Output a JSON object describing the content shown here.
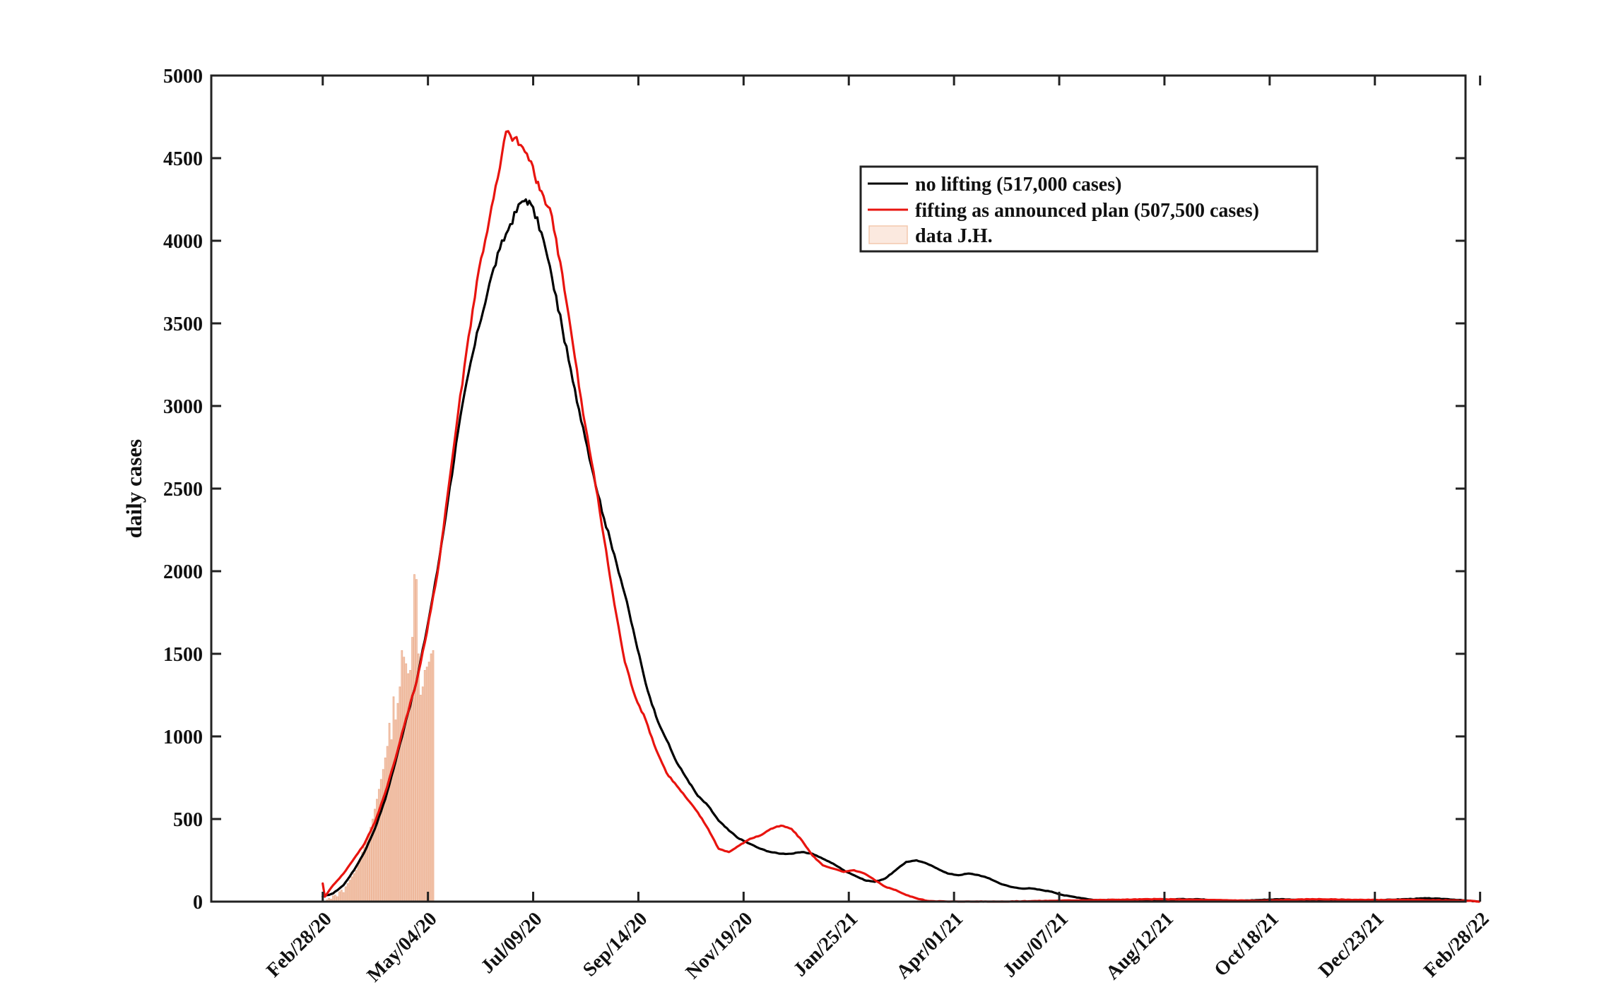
{
  "chart_data": {
    "type": "line",
    "title": "",
    "xlabel": "",
    "ylabel": "daily cases",
    "ylim": [
      0,
      5000
    ],
    "xlim_days": [
      -107,
      1097
    ],
    "yticks": [
      0,
      500,
      1000,
      1500,
      2000,
      2500,
      3000,
      3500,
      4000,
      4500,
      5000
    ],
    "xticks": [
      {
        "label": "Feb/28/20",
        "day": 0
      },
      {
        "label": "May/04/20",
        "day": 101
      },
      {
        "label": "Jul/09/20",
        "day": 202
      },
      {
        "label": "Sep/14/20",
        "day": 303
      },
      {
        "label": "Nov/19/20",
        "day": 404
      },
      {
        "label": "Jan/25/21",
        "day": 505
      },
      {
        "label": "Apr/01/21",
        "day": 606
      },
      {
        "label": "Jun/07/21",
        "day": 707
      },
      {
        "label": "Aug/12/21",
        "day": 808
      },
      {
        "label": "Oct/18/21",
        "day": 909
      },
      {
        "label": "Dec/23/21",
        "day": 1010
      },
      {
        "label": "Feb/28/22",
        "day": 1111
      }
    ],
    "legend": {
      "position": "top-right",
      "entries": [
        {
          "label": "no lifting (517,000 cases)",
          "series": "no_lifting"
        },
        {
          "label": "fifting as announced plan (507,500 cases)",
          "series": "lifting"
        },
        {
          "label": "data J.H.",
          "series": "data"
        }
      ]
    },
    "series": [
      {
        "name": "no lifting (517,000 cases)",
        "key": "no_lifting",
        "kind": "line",
        "color": "#000000",
        "points": [
          [
            0,
            30
          ],
          [
            10,
            50
          ],
          [
            20,
            100
          ],
          [
            30,
            190
          ],
          [
            40,
            300
          ],
          [
            50,
            440
          ],
          [
            60,
            620
          ],
          [
            70,
            850
          ],
          [
            80,
            1100
          ],
          [
            90,
            1330
          ],
          [
            100,
            1650
          ],
          [
            110,
            2000
          ],
          [
            120,
            2420
          ],
          [
            130,
            2850
          ],
          [
            140,
            3200
          ],
          [
            150,
            3480
          ],
          [
            160,
            3740
          ],
          [
            170,
            3950
          ],
          [
            180,
            4100
          ],
          [
            190,
            4230
          ],
          [
            195,
            4250
          ],
          [
            200,
            4220
          ],
          [
            210,
            4050
          ],
          [
            220,
            3780
          ],
          [
            230,
            3470
          ],
          [
            240,
            3150
          ],
          [
            250,
            2870
          ],
          [
            260,
            2580
          ],
          [
            270,
            2320
          ],
          [
            280,
            2100
          ],
          [
            290,
            1860
          ],
          [
            300,
            1590
          ],
          [
            310,
            1320
          ],
          [
            320,
            1120
          ],
          [
            330,
            980
          ],
          [
            340,
            840
          ],
          [
            350,
            740
          ],
          [
            360,
            640
          ],
          [
            370,
            580
          ],
          [
            380,
            490
          ],
          [
            390,
            430
          ],
          [
            400,
            380
          ],
          [
            410,
            350
          ],
          [
            420,
            320
          ],
          [
            430,
            300
          ],
          [
            440,
            290
          ],
          [
            450,
            290
          ],
          [
            460,
            300
          ],
          [
            470,
            290
          ],
          [
            480,
            260
          ],
          [
            490,
            230
          ],
          [
            500,
            190
          ],
          [
            510,
            160
          ],
          [
            520,
            130
          ],
          [
            530,
            120
          ],
          [
            540,
            140
          ],
          [
            550,
            190
          ],
          [
            560,
            240
          ],
          [
            570,
            250
          ],
          [
            580,
            230
          ],
          [
            590,
            200
          ],
          [
            600,
            170
          ],
          [
            610,
            160
          ],
          [
            620,
            170
          ],
          [
            630,
            160
          ],
          [
            640,
            140
          ],
          [
            650,
            110
          ],
          [
            660,
            90
          ],
          [
            670,
            80
          ],
          [
            680,
            80
          ],
          [
            690,
            70
          ],
          [
            700,
            60
          ],
          [
            710,
            40
          ],
          [
            720,
            30
          ],
          [
            730,
            20
          ],
          [
            740,
            10
          ],
          [
            760,
            10
          ],
          [
            780,
            5
          ],
          [
            800,
            5
          ],
          [
            820,
            15
          ],
          [
            840,
            15
          ],
          [
            860,
            5
          ],
          [
            880,
            5
          ],
          [
            900,
            10
          ],
          [
            920,
            15
          ],
          [
            940,
            10
          ],
          [
            960,
            10
          ],
          [
            980,
            5
          ],
          [
            1000,
            5
          ],
          [
            1020,
            10
          ],
          [
            1040,
            15
          ],
          [
            1060,
            20
          ],
          [
            1080,
            15
          ],
          [
            1100,
            5
          ],
          [
            1110,
            0
          ]
        ]
      },
      {
        "name": "fifting as announced plan (507,500 cases)",
        "key": "lifting",
        "kind": "line",
        "color": "#e8140f",
        "points": [
          [
            0,
            110
          ],
          [
            2,
            30
          ],
          [
            10,
            100
          ],
          [
            20,
            170
          ],
          [
            30,
            260
          ],
          [
            40,
            350
          ],
          [
            50,
            480
          ],
          [
            60,
            660
          ],
          [
            70,
            870
          ],
          [
            80,
            1110
          ],
          [
            90,
            1330
          ],
          [
            100,
            1630
          ],
          [
            110,
            1980
          ],
          [
            120,
            2470
          ],
          [
            130,
            2960
          ],
          [
            140,
            3420
          ],
          [
            150,
            3830
          ],
          [
            160,
            4130
          ],
          [
            170,
            4440
          ],
          [
            176,
            4660
          ],
          [
            180,
            4640
          ],
          [
            190,
            4580
          ],
          [
            200,
            4480
          ],
          [
            205,
            4350
          ],
          [
            210,
            4300
          ],
          [
            220,
            4150
          ],
          [
            230,
            3800
          ],
          [
            240,
            3380
          ],
          [
            250,
            2950
          ],
          [
            260,
            2600
          ],
          [
            270,
            2200
          ],
          [
            280,
            1800
          ],
          [
            290,
            1450
          ],
          [
            300,
            1240
          ],
          [
            310,
            1100
          ],
          [
            320,
            920
          ],
          [
            330,
            780
          ],
          [
            340,
            700
          ],
          [
            350,
            620
          ],
          [
            360,
            540
          ],
          [
            370,
            440
          ],
          [
            380,
            320
          ],
          [
            390,
            300
          ],
          [
            400,
            340
          ],
          [
            410,
            380
          ],
          [
            420,
            400
          ],
          [
            430,
            440
          ],
          [
            440,
            460
          ],
          [
            450,
            440
          ],
          [
            460,
            370
          ],
          [
            470,
            280
          ],
          [
            480,
            220
          ],
          [
            490,
            200
          ],
          [
            500,
            180
          ],
          [
            510,
            190
          ],
          [
            520,
            170
          ],
          [
            530,
            130
          ],
          [
            540,
            90
          ],
          [
            550,
            70
          ],
          [
            560,
            40
          ],
          [
            570,
            20
          ],
          [
            580,
            5
          ],
          [
            600,
            0
          ],
          [
            650,
            0
          ],
          [
            700,
            5
          ],
          [
            750,
            10
          ],
          [
            800,
            15
          ],
          [
            850,
            10
          ],
          [
            900,
            5
          ],
          [
            950,
            15
          ],
          [
            1000,
            10
          ],
          [
            1050,
            10
          ],
          [
            1100,
            5
          ],
          [
            1110,
            0
          ]
        ]
      },
      {
        "name": "data J.H.",
        "key": "data",
        "kind": "bar",
        "color": "#e9a07a",
        "days": [
          4,
          6,
          8,
          10,
          12,
          14,
          16,
          18,
          20,
          22,
          24,
          26,
          28,
          30,
          32,
          34,
          36,
          38,
          40,
          42,
          44,
          46,
          48,
          50,
          52,
          54,
          56,
          58,
          60,
          62,
          64,
          66,
          68,
          70,
          72,
          74,
          76,
          78,
          80,
          82,
          84,
          86,
          88,
          90,
          92,
          94,
          96,
          98,
          100,
          102,
          104,
          106
        ],
        "values": [
          10,
          20,
          15,
          35,
          40,
          30,
          60,
          70,
          55,
          90,
          110,
          130,
          150,
          170,
          190,
          220,
          260,
          300,
          330,
          360,
          410,
          450,
          500,
          560,
          620,
          680,
          740,
          800,
          870,
          940,
          1080,
          980,
          1240,
          1100,
          1200,
          1300,
          1520,
          1480,
          1440,
          1380,
          1400,
          1600,
          1980,
          1950,
          1500,
          1250,
          1300,
          1400,
          1420,
          1450,
          1500,
          1520
        ]
      }
    ]
  }
}
